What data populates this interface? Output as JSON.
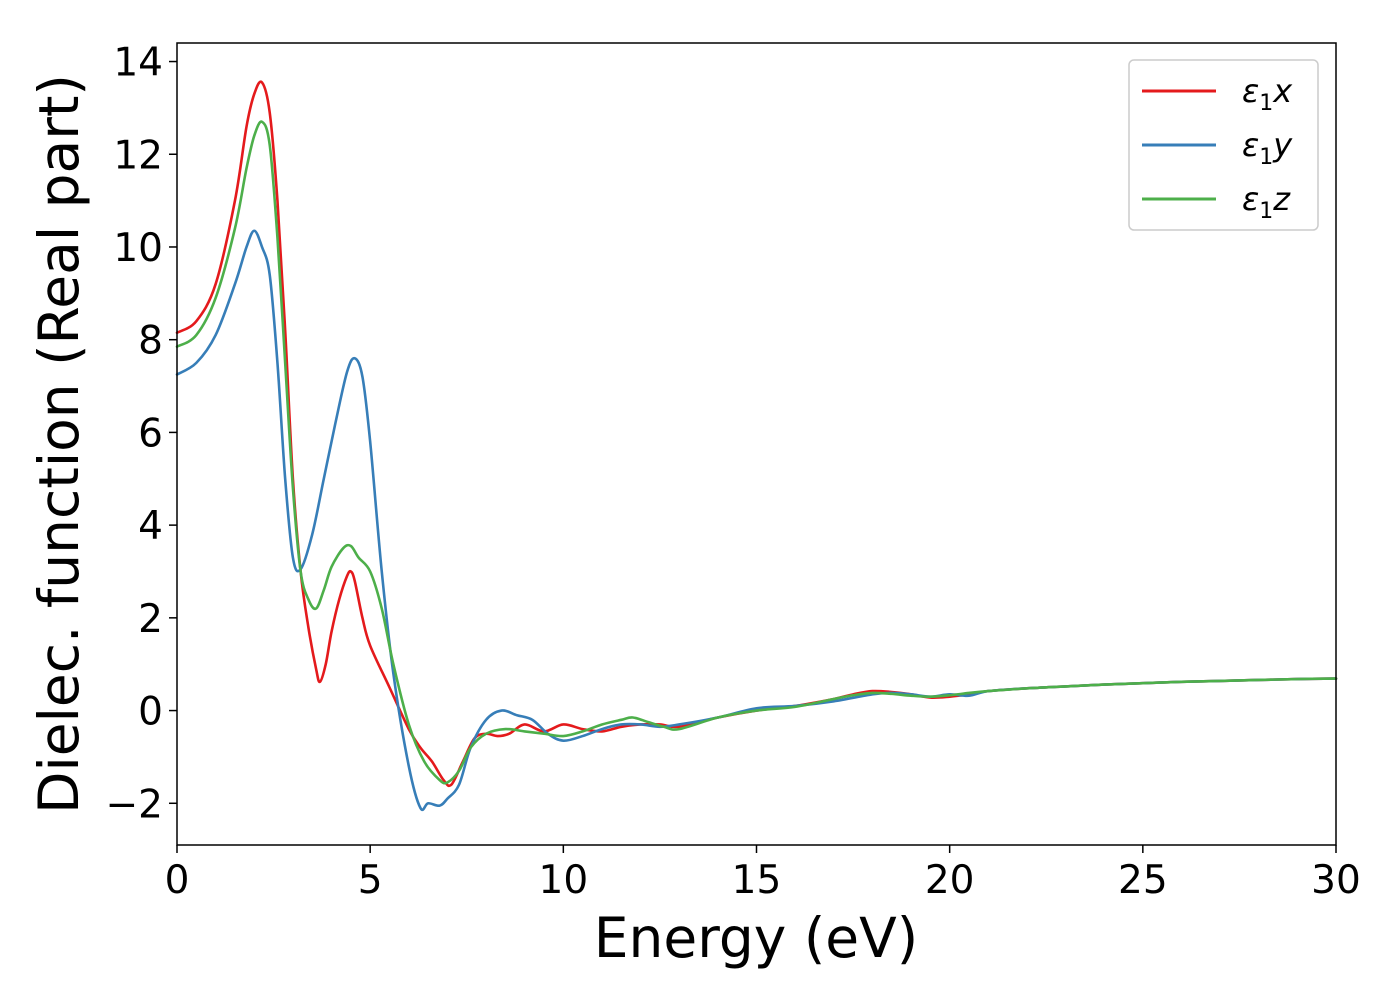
{
  "chart_data": {
    "type": "line",
    "title": "",
    "xlabel": "Energy (eV)",
    "ylabel": "Dielec. function (Real part)",
    "xlim": [
      0,
      30
    ],
    "ylim": [
      -2.9,
      14.4
    ],
    "xticks": [
      0,
      5,
      10,
      15,
      20,
      25,
      30
    ],
    "xtick_labels": [
      "0",
      "5",
      "10",
      "15",
      "20",
      "25",
      "30"
    ],
    "yticks": [
      -2,
      0,
      2,
      4,
      6,
      8,
      10,
      12,
      14
    ],
    "ytick_labels": [
      "−2",
      "0",
      "2",
      "4",
      "6",
      "8",
      "10",
      "12",
      "14"
    ],
    "grid": false,
    "legend_position": "top-right",
    "series": [
      {
        "name": "ε₁x",
        "legend_main": "ε",
        "legend_sub": "1",
        "legend_var": "x",
        "color": "#e41a1c",
        "x": [
          0,
          0.5,
          1.0,
          1.5,
          1.8,
          2.0,
          2.2,
          2.4,
          2.6,
          2.8,
          3.0,
          3.2,
          3.4,
          3.6,
          3.7,
          3.85,
          4.0,
          4.2,
          4.4,
          4.5,
          4.6,
          4.8,
          5.0,
          5.5,
          6.0,
          6.3,
          6.6,
          6.9,
          7.1,
          7.4,
          7.7,
          8.0,
          8.3,
          8.6,
          9.0,
          9.5,
          10.0,
          10.5,
          11.0,
          11.5,
          12.0,
          12.5,
          13.0,
          14.0,
          15.0,
          16.0,
          17.0,
          17.5,
          18.0,
          18.5,
          19.0,
          19.5,
          20.0,
          20.5,
          21.0,
          22.0,
          23.0,
          24.0,
          25.0,
          26.0,
          27.0,
          28.0,
          29.0,
          30.0
        ],
        "y": [
          8.15,
          8.4,
          9.2,
          11.0,
          12.6,
          13.3,
          13.55,
          12.9,
          11.0,
          8.2,
          5.0,
          3.0,
          1.8,
          0.9,
          0.62,
          1.0,
          1.7,
          2.4,
          2.9,
          3.0,
          2.8,
          2.0,
          1.4,
          0.5,
          -0.4,
          -0.8,
          -1.1,
          -1.5,
          -1.6,
          -1.1,
          -0.6,
          -0.5,
          -0.55,
          -0.5,
          -0.3,
          -0.45,
          -0.3,
          -0.4,
          -0.45,
          -0.35,
          -0.3,
          -0.3,
          -0.35,
          -0.15,
          0.0,
          0.1,
          0.25,
          0.35,
          0.42,
          0.4,
          0.35,
          0.28,
          0.3,
          0.35,
          0.42,
          0.48,
          0.52,
          0.56,
          0.59,
          0.62,
          0.64,
          0.66,
          0.68,
          0.69
        ]
      },
      {
        "name": "ε₁y",
        "legend_main": "ε",
        "legend_sub": "1",
        "legend_var": "y",
        "color": "#377eb8",
        "x": [
          0,
          0.5,
          1.0,
          1.5,
          1.8,
          2.0,
          2.2,
          2.4,
          2.6,
          2.8,
          3.0,
          3.2,
          3.5,
          3.8,
          4.1,
          4.4,
          4.6,
          4.8,
          5.0,
          5.3,
          5.6,
          6.0,
          6.3,
          6.5,
          6.8,
          7.0,
          7.3,
          7.6,
          8.0,
          8.4,
          8.8,
          9.2,
          9.6,
          10.0,
          10.5,
          11.0,
          11.5,
          12.0,
          12.5,
          13.0,
          14.0,
          15.0,
          16.0,
          17.0,
          18.0,
          18.5,
          19.0,
          19.5,
          20.0,
          20.5,
          21.0,
          22.0,
          23.0,
          24.0,
          25.0,
          26.0,
          27.0,
          28.0,
          29.0,
          30.0
        ],
        "y": [
          7.25,
          7.5,
          8.1,
          9.2,
          10.0,
          10.35,
          10.0,
          9.4,
          7.5,
          5.0,
          3.3,
          3.05,
          3.8,
          5.0,
          6.2,
          7.3,
          7.6,
          7.2,
          5.8,
          3.0,
          0.8,
          -1.2,
          -2.1,
          -2.0,
          -2.05,
          -1.9,
          -1.6,
          -0.8,
          -0.2,
          0.0,
          -0.1,
          -0.2,
          -0.5,
          -0.65,
          -0.55,
          -0.4,
          -0.3,
          -0.3,
          -0.35,
          -0.3,
          -0.15,
          0.05,
          0.1,
          0.2,
          0.35,
          0.38,
          0.35,
          0.3,
          0.35,
          0.32,
          0.42,
          0.48,
          0.52,
          0.56,
          0.59,
          0.62,
          0.64,
          0.66,
          0.68,
          0.69
        ]
      },
      {
        "name": "ε₁z",
        "legend_main": "ε",
        "legend_sub": "1",
        "legend_var": "z",
        "color": "#4daf4a",
        "x": [
          0,
          0.5,
          1.0,
          1.5,
          1.8,
          2.0,
          2.2,
          2.4,
          2.6,
          2.8,
          3.0,
          3.2,
          3.4,
          3.6,
          3.8,
          4.0,
          4.3,
          4.5,
          4.7,
          5.0,
          5.3,
          5.6,
          6.0,
          6.4,
          6.8,
          7.0,
          7.3,
          7.6,
          8.0,
          8.5,
          9.0,
          9.5,
          10.0,
          10.5,
          11.0,
          11.5,
          11.8,
          12.2,
          12.6,
          13.0,
          14.0,
          15.0,
          16.0,
          17.0,
          17.5,
          18.0,
          18.5,
          19.0,
          19.5,
          20.0,
          20.5,
          21.0,
          22.0,
          23.0,
          24.0,
          25.0,
          26.0,
          27.0,
          28.0,
          29.0,
          30.0
        ],
        "y": [
          7.85,
          8.1,
          8.9,
          10.4,
          11.7,
          12.4,
          12.7,
          12.2,
          10.2,
          7.5,
          4.8,
          3.0,
          2.4,
          2.2,
          2.6,
          3.1,
          3.5,
          3.55,
          3.3,
          3.0,
          2.2,
          1.0,
          -0.3,
          -1.1,
          -1.5,
          -1.55,
          -1.3,
          -0.8,
          -0.5,
          -0.4,
          -0.45,
          -0.5,
          -0.55,
          -0.45,
          -0.3,
          -0.2,
          -0.15,
          -0.25,
          -0.35,
          -0.4,
          -0.15,
          0.0,
          0.08,
          0.25,
          0.33,
          0.38,
          0.36,
          0.32,
          0.3,
          0.33,
          0.38,
          0.42,
          0.48,
          0.52,
          0.56,
          0.59,
          0.62,
          0.64,
          0.66,
          0.68,
          0.69
        ]
      }
    ]
  }
}
